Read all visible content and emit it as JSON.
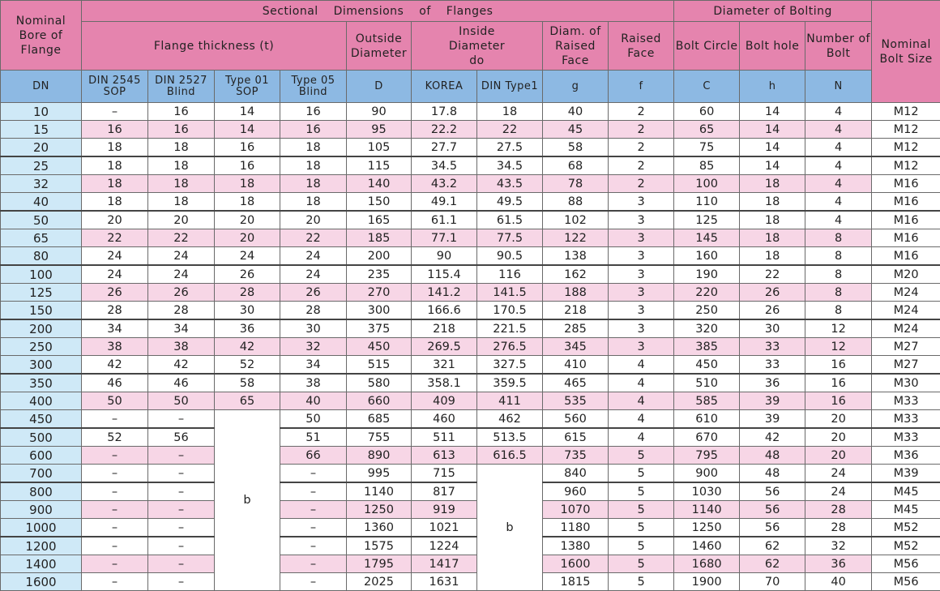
{
  "header": {
    "bore": "Nominal Bore of Flange",
    "sectional": "Sectional Dimensions of Flanges",
    "bolting": "Diameter of Bolting",
    "bolt_size": "Nominal Bolt Size",
    "thickness": "Flange thickness (t)",
    "outside": "Outside Diameter",
    "inside": "Inside Diameter do",
    "raised_dia": "Diam. of Raised Face",
    "raised": "Raised Face",
    "circle": "Bolt Circle",
    "hole": "Bolt hole",
    "number": "Number of Bolt",
    "columns": [
      "DN",
      "DIN 2545 SOP",
      "DIN 2527 Blind",
      "Type 01 SOP",
      "Type 05 Blind",
      "D",
      "KOREA",
      "DIN Type1",
      "g",
      "f",
      "C",
      "h",
      "N"
    ]
  },
  "table": {
    "rows": [
      [
        10,
        "–",
        16,
        14,
        16,
        90,
        17.8,
        18,
        40,
        2,
        60,
        14,
        4,
        "M12"
      ],
      [
        15,
        16,
        16,
        14,
        16,
        95,
        22.2,
        22,
        45,
        2,
        65,
        14,
        4,
        "M12"
      ],
      [
        20,
        18,
        18,
        16,
        18,
        105,
        27.7,
        27.5,
        58,
        2,
        75,
        14,
        4,
        "M12"
      ],
      [
        25,
        18,
        18,
        16,
        18,
        115,
        34.5,
        34.5,
        68,
        2,
        85,
        14,
        4,
        "M12"
      ],
      [
        32,
        18,
        18,
        18,
        18,
        140,
        43.2,
        43.5,
        78,
        2,
        100,
        18,
        4,
        "M16"
      ],
      [
        40,
        18,
        18,
        18,
        18,
        150,
        49.1,
        49.5,
        88,
        3,
        110,
        18,
        4,
        "M16"
      ],
      [
        50,
        20,
        20,
        20,
        20,
        165,
        61.1,
        61.5,
        102,
        3,
        125,
        18,
        4,
        "M16"
      ],
      [
        65,
        22,
        22,
        20,
        22,
        185,
        77.1,
        77.5,
        122,
        3,
        145,
        18,
        8,
        "M16"
      ],
      [
        80,
        24,
        24,
        24,
        24,
        200,
        90,
        90.5,
        138,
        3,
        160,
        18,
        8,
        "M16"
      ],
      [
        100,
        24,
        24,
        26,
        24,
        235,
        115.4,
        116,
        162,
        3,
        190,
        22,
        8,
        "M20"
      ],
      [
        125,
        26,
        26,
        28,
        26,
        270,
        141.2,
        141.5,
        188,
        3,
        220,
        26,
        8,
        "M24"
      ],
      [
        150,
        28,
        28,
        30,
        28,
        300,
        166.6,
        170.5,
        218,
        3,
        250,
        26,
        8,
        "M24"
      ],
      [
        200,
        34,
        34,
        36,
        30,
        375,
        218,
        221.5,
        285,
        3,
        320,
        30,
        12,
        "M24"
      ],
      [
        250,
        38,
        38,
        42,
        32,
        450,
        269.5,
        276.5,
        345,
        3,
        385,
        33,
        12,
        "M27"
      ],
      [
        300,
        42,
        42,
        52,
        34,
        515,
        321,
        327.5,
        410,
        4,
        450,
        33,
        16,
        "M27"
      ],
      [
        350,
        46,
        46,
        58,
        38,
        580,
        358.1,
        359.5,
        465,
        4,
        510,
        36,
        16,
        "M30"
      ],
      [
        400,
        50,
        50,
        65,
        40,
        660,
        409,
        411,
        535,
        4,
        585,
        39,
        16,
        "M33"
      ],
      [
        450,
        "–",
        "–",
        "b",
        50,
        685,
        460,
        462,
        560,
        4,
        610,
        39,
        20,
        "M33"
      ],
      [
        500,
        52,
        56,
        51,
        755,
        511,
        513.5,
        615,
        4,
        670,
        42,
        20,
        "M33"
      ],
      [
        600,
        "–",
        "–",
        66,
        890,
        613,
        616.5,
        735,
        5,
        795,
        48,
        20,
        "M36"
      ],
      [
        700,
        "–",
        "–",
        "–",
        995,
        715,
        "b",
        840,
        5,
        900,
        48,
        24,
        "M39"
      ],
      [
        800,
        "–",
        "–",
        "–",
        1140,
        817,
        960,
        5,
        1030,
        56,
        24,
        "M45"
      ],
      [
        900,
        "–",
        "–",
        "–",
        1250,
        919,
        1070,
        5,
        1140,
        56,
        28,
        "M45"
      ],
      [
        1000,
        "–",
        "–",
        "–",
        1360,
        1021,
        1180,
        5,
        1250,
        56,
        28,
        "M52"
      ],
      [
        1200,
        "–",
        "–",
        "–",
        1575,
        1224,
        1380,
        5,
        1460,
        62,
        32,
        "M52"
      ],
      [
        1400,
        "–",
        "–",
        "–",
        1795,
        1417,
        1600,
        5,
        1680,
        62,
        36,
        "M56"
      ],
      [
        1600,
        "–",
        "–",
        "–",
        2025,
        1631,
        1815,
        5,
        1900,
        70,
        40,
        "M56"
      ]
    ]
  }
}
